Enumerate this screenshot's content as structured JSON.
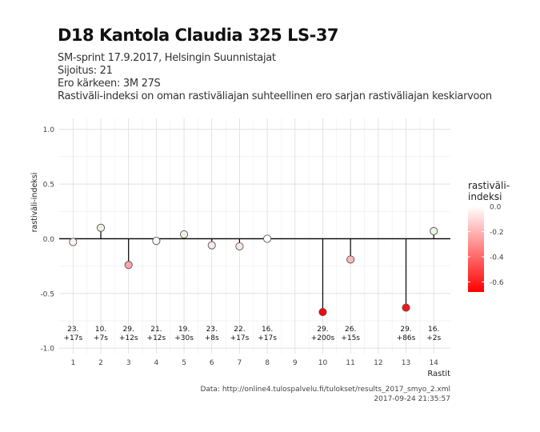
{
  "header": {
    "title": "D18 Kantola Claudia 325 LS-37",
    "subtitle_lines": [
      "SM-sprint 17.9.2017, Helsingin Suunnistajat",
      "Sijoitus: 21",
      "Ero kärkeen: 3M 27S",
      "Rastiväli-indeksi on oman rastiväliajan suhteellinen ero sarjan rastiväliajan keskiarvoon"
    ]
  },
  "caption": {
    "source": "Data: http://online4.tulospalvelu.fi/tulokset/results_2017_smyo_2.xml",
    "timestamp": "2017-09-24 21:35:57"
  },
  "colors": {
    "low": "#ff0000",
    "high": "#ffffff",
    "positive": "#e8f5e0",
    "grid": "#dddddd",
    "zero_line": "#000000"
  },
  "chart_data": {
    "type": "scatter",
    "style": "lollipop",
    "xlabel": "Rastit",
    "ylabel": "rastiväli-indeksi",
    "xlim": [
      0.5,
      14.6
    ],
    "ylim": [
      -1.05,
      1.1
    ],
    "x_ticks": [
      1,
      2,
      3,
      4,
      5,
      6,
      7,
      8,
      9,
      10,
      11,
      12,
      13,
      14
    ],
    "y_ticks": [
      -1.0,
      -0.5,
      0.0,
      0.5,
      1.0
    ],
    "y_tick_labels": [
      "-1.0",
      "-0.5",
      "0.0",
      "0.5",
      "1.0"
    ],
    "grid": true,
    "legend": {
      "title": "rastiväli-\nindeksi",
      "position": "right",
      "ticks": [
        0.0,
        -0.2,
        -0.4,
        -0.6
      ],
      "tick_labels": [
        "0.0",
        "-0.2",
        "-0.4",
        "-0.6"
      ],
      "range": [
        -0.68,
        0.0
      ]
    },
    "points": [
      {
        "x": 1,
        "y": -0.03,
        "label_top": "23.",
        "label_bottom": "+17s"
      },
      {
        "x": 2,
        "y": 0.1,
        "label_top": "10.",
        "label_bottom": "+7s"
      },
      {
        "x": 3,
        "y": -0.24,
        "label_top": "29.",
        "label_bottom": "+12s"
      },
      {
        "x": 4,
        "y": -0.02,
        "label_top": "21.",
        "label_bottom": "+12s"
      },
      {
        "x": 5,
        "y": 0.04,
        "label_top": "19.",
        "label_bottom": "+30s"
      },
      {
        "x": 6,
        "y": -0.06,
        "label_top": "23.",
        "label_bottom": "+8s"
      },
      {
        "x": 7,
        "y": -0.07,
        "label_top": "22.",
        "label_bottom": "+17s"
      },
      {
        "x": 8,
        "y": 0.0,
        "label_top": "16.",
        "label_bottom": "+17s"
      },
      {
        "x": 10,
        "y": -0.67,
        "label_top": "29.",
        "label_bottom": "+200s"
      },
      {
        "x": 11,
        "y": -0.19,
        "label_top": "26.",
        "label_bottom": "+15s"
      },
      {
        "x": 13,
        "y": -0.63,
        "label_top": "29.",
        "label_bottom": "+86s"
      },
      {
        "x": 14,
        "y": 0.07,
        "label_top": "16.",
        "label_bottom": "+2s"
      }
    ]
  }
}
